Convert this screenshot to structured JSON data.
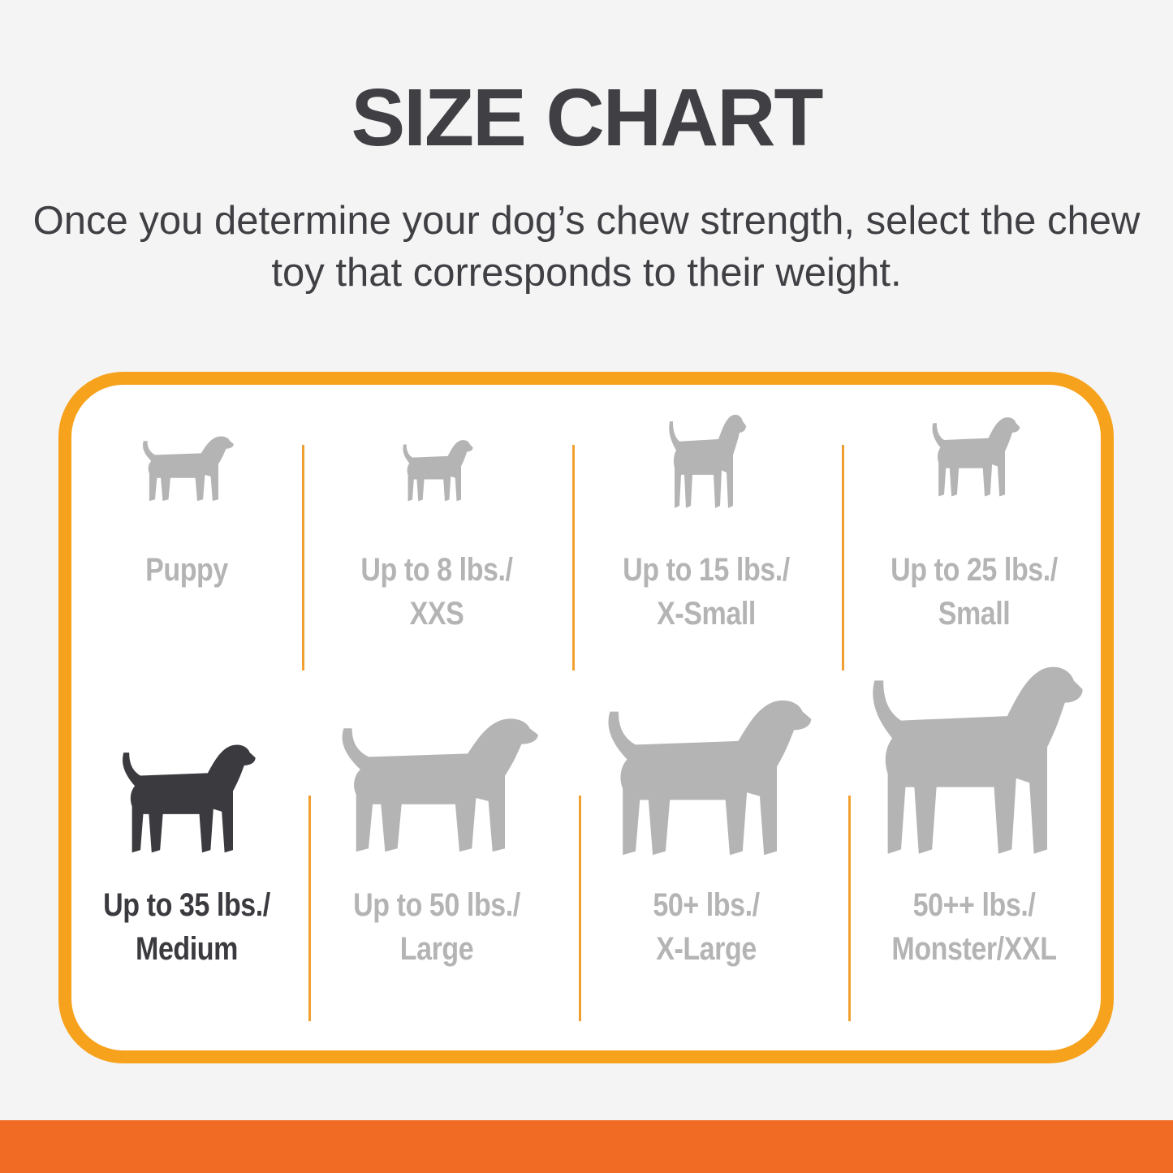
{
  "title": "SIZE CHART",
  "subtitle": "Once you determine your dog’s chew strength, select the chew toy that corresponds to their weight.",
  "colors": {
    "accent_border": "#f7a21c",
    "bottom_bar": "#f26b24",
    "inactive": "#b4b4b4",
    "active": "#3a3a3f"
  },
  "sizes": [
    {
      "line1": "Puppy",
      "line2": "",
      "icon": "puppy-icon",
      "active": false
    },
    {
      "line1": "Up to 8 lbs./",
      "line2": "XXS",
      "icon": "chihuahua-icon",
      "active": false
    },
    {
      "line1": "Up to 15 lbs./",
      "line2": "X-Small",
      "icon": "toy-terrier-icon",
      "active": false
    },
    {
      "line1": "Up to 25 lbs./",
      "line2": "Small",
      "icon": "terrier-icon",
      "active": false
    },
    {
      "line1": "Up to 35 lbs./",
      "line2": "Medium",
      "icon": "beagle-icon",
      "active": true
    },
    {
      "line1": "Up to 50 lbs./",
      "line2": "Large",
      "icon": "labrador-icon",
      "active": false
    },
    {
      "line1": "50+ lbs./",
      "line2": "X-Large",
      "icon": "shepherd-icon",
      "active": false
    },
    {
      "line1": "50++ lbs./",
      "line2": "Monster/XXL",
      "icon": "great-dane-icon",
      "active": false
    }
  ]
}
